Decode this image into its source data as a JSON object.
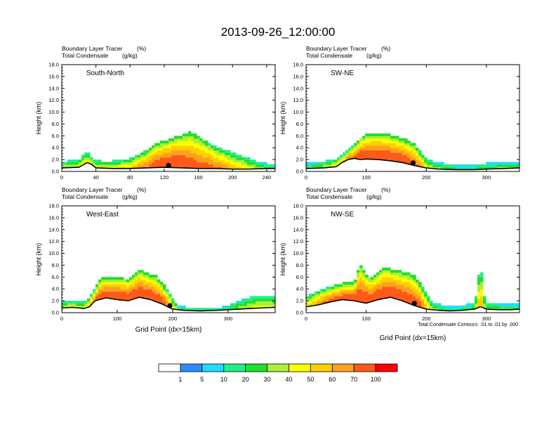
{
  "title": "2013-09-26_12:00:00",
  "footnote": "Total Condensate Contours: .01 to .01 by .000",
  "palette": [
    "#ffffff",
    "#2a8cff",
    "#20dcff",
    "#1ef08a",
    "#22e02a",
    "#a8f03a",
    "#ffff00",
    "#ffd000",
    "#ffa020",
    "#ff5a1a",
    "#ff0000"
  ],
  "colorbar": {
    "labels": [
      "1",
      "5",
      "10",
      "20",
      "30",
      "40",
      "50",
      "60",
      "70",
      "100"
    ],
    "colors": [
      "#ffffff",
      "#2a8cff",
      "#20dcff",
      "#1ef08a",
      "#22e02a",
      "#a8f03a",
      "#ffff00",
      "#ffd000",
      "#ffa020",
      "#ff5a1a",
      "#ff0000"
    ]
  },
  "chart_data": [
    {
      "type": "heatmap",
      "panel_label": "South-North",
      "left_string_1": "Boundary Layer Tracer",
      "right_string_1": "(%)",
      "left_string_2": "Total Condensate",
      "right_string_2": "(g/kg)",
      "ylabel": "Height (km)",
      "xlabel": "",
      "xlim": [
        0,
        250
      ],
      "ylim": [
        0,
        18
      ],
      "xticks": [
        "0",
        "40",
        "80",
        "120",
        "160",
        "200",
        "240"
      ],
      "yticks": [
        "0.0",
        "2.0",
        "4.0",
        "6.0",
        "8.0",
        "10.0",
        "12.0",
        "14.0",
        "16.0",
        "18.0"
      ],
      "terrain_x": [
        0,
        20,
        30,
        35,
        40,
        60,
        80,
        100,
        120,
        140,
        160,
        180,
        200,
        220,
        240,
        250
      ],
      "terrain_y": [
        0.6,
        0.7,
        1.5,
        1.2,
        0.6,
        0.5,
        0.5,
        0.6,
        0.7,
        0.6,
        0.5,
        0.5,
        0.4,
        0.4,
        0.5,
        0.5
      ],
      "plume_x": [
        0,
        20,
        30,
        35,
        45,
        60,
        80,
        100,
        110,
        120,
        130,
        140,
        150,
        160,
        170,
        180,
        190,
        200,
        210,
        220,
        230,
        240,
        250
      ],
      "plume_top": [
        1.5,
        1.8,
        3.2,
        2.0,
        1.6,
        1.6,
        2.0,
        3.5,
        4.5,
        5.0,
        5.5,
        6.0,
        6.5,
        5.8,
        4.8,
        4.0,
        3.5,
        3.0,
        2.5,
        2.0,
        1.5,
        1.2,
        1.0
      ],
      "plume_peak": [
        40,
        45,
        60,
        50,
        45,
        50,
        60,
        75,
        85,
        90,
        92,
        90,
        85,
        80,
        80,
        75,
        70,
        60,
        55,
        45,
        40,
        30,
        25
      ],
      "marker_x": 125
    },
    {
      "type": "heatmap",
      "panel_label": "SW-NE",
      "left_string_1": "Boundary Layer Tracer",
      "right_string_1": "(%)",
      "left_string_2": "Total Condensate",
      "right_string_2": "(g/kg)",
      "ylabel": "Height (km)",
      "xlabel": "",
      "xlim": [
        0,
        355
      ],
      "ylim": [
        0,
        18
      ],
      "xticks": [
        "0",
        "100",
        "200",
        "300"
      ],
      "yticks": [
        "0.0",
        "2.0",
        "4.0",
        "6.0",
        "8.0",
        "10.0",
        "12.0",
        "14.0",
        "16.0",
        "18.0"
      ],
      "terrain_x": [
        0,
        30,
        50,
        60,
        70,
        80,
        90,
        100,
        120,
        140,
        160,
        180,
        200,
        220,
        250,
        280,
        300,
        330,
        355
      ],
      "terrain_y": [
        0.5,
        0.6,
        0.8,
        1.5,
        2.0,
        2.2,
        2.0,
        2.1,
        2.0,
        1.8,
        1.5,
        1.0,
        0.6,
        0.4,
        0.3,
        0.3,
        0.4,
        0.5,
        0.6
      ],
      "plume_x": [
        0,
        30,
        50,
        60,
        70,
        80,
        90,
        100,
        120,
        140,
        160,
        180,
        190,
        200,
        220,
        250,
        280,
        300,
        330,
        355
      ],
      "plume_top": [
        1.2,
        1.5,
        2.0,
        2.6,
        3.5,
        4.3,
        5.5,
        6.0,
        6.2,
        6.0,
        5.5,
        4.5,
        3.2,
        2.0,
        1.3,
        1.0,
        1.0,
        1.2,
        1.4,
        1.3
      ],
      "plume_peak": [
        30,
        40,
        50,
        60,
        75,
        80,
        90,
        90,
        92,
        90,
        88,
        80,
        70,
        50,
        35,
        25,
        25,
        30,
        35,
        30
      ],
      "marker_x": 178
    },
    {
      "type": "heatmap",
      "panel_label": "West-East",
      "left_string_1": "Boundary Layer Tracer",
      "right_string_1": "(%)",
      "left_string_2": "Total Condensate",
      "right_string_2": "(g/kg)",
      "ylabel": "Height (km)",
      "xlabel": "Grid Point (dx=15km)",
      "xlim": [
        0,
        385
      ],
      "ylim": [
        0,
        18
      ],
      "xticks": [
        "0",
        "100",
        "200",
        "300"
      ],
      "yticks": [
        "0.0",
        "2.0",
        "4.0",
        "6.0",
        "8.0",
        "10.0",
        "12.0",
        "14.0",
        "16.0",
        "18.0"
      ],
      "terrain_x": [
        0,
        20,
        40,
        50,
        60,
        80,
        100,
        120,
        140,
        160,
        180,
        200,
        220,
        250,
        280,
        300,
        320,
        340,
        360,
        385
      ],
      "terrain_y": [
        0.8,
        0.9,
        0.7,
        1.0,
        2.0,
        2.5,
        2.2,
        2.0,
        2.6,
        2.2,
        1.5,
        0.6,
        0.4,
        0.3,
        0.4,
        0.5,
        0.6,
        0.7,
        0.8,
        0.9
      ],
      "plume_x": [
        0,
        20,
        40,
        50,
        60,
        70,
        80,
        100,
        120,
        140,
        160,
        170,
        180,
        190,
        200,
        210,
        230,
        260,
        290,
        310,
        330,
        350,
        370,
        385
      ],
      "plume_top": [
        1.6,
        1.8,
        1.6,
        2.5,
        4.0,
        5.5,
        5.8,
        5.8,
        5.5,
        7.0,
        6.3,
        6.0,
        5.0,
        3.8,
        2.2,
        1.0,
        0.7,
        0.6,
        0.8,
        1.5,
        2.2,
        2.6,
        2.8,
        2.8
      ],
      "plume_peak": [
        45,
        50,
        45,
        60,
        80,
        88,
        90,
        92,
        90,
        92,
        90,
        88,
        85,
        75,
        55,
        35,
        25,
        20,
        25,
        35,
        40,
        45,
        45,
        40
      ],
      "marker_x": 195
    },
    {
      "type": "heatmap",
      "panel_label": "NW-SE",
      "left_string_1": "Boundary Layer Tracer",
      "right_string_1": "(%)",
      "left_string_2": "Total Condensate",
      "right_string_2": "(g/kg)",
      "ylabel": "Height (km)",
      "xlabel": "Grid Point (dx=15km)",
      "xlim": [
        0,
        355
      ],
      "ylim": [
        0,
        18
      ],
      "xticks": [
        "0",
        "100",
        "200",
        "300"
      ],
      "yticks": [
        "0.0",
        "2.0",
        "4.0",
        "6.0",
        "8.0",
        "10.0",
        "12.0",
        "14.0",
        "16.0",
        "18.0"
      ],
      "terrain_x": [
        0,
        20,
        40,
        60,
        80,
        100,
        120,
        140,
        160,
        180,
        200,
        220,
        240,
        260,
        280,
        290,
        300,
        320,
        340,
        355
      ],
      "terrain_y": [
        1.0,
        1.3,
        1.8,
        2.2,
        2.0,
        1.6,
        2.2,
        2.6,
        2.0,
        1.2,
        0.6,
        0.4,
        0.3,
        0.4,
        0.6,
        1.0,
        0.6,
        0.5,
        0.5,
        0.6
      ],
      "plume_x": [
        0,
        20,
        40,
        60,
        80,
        90,
        100,
        110,
        130,
        150,
        170,
        180,
        190,
        200,
        210,
        230,
        260,
        280,
        285,
        290,
        295,
        300,
        320,
        340,
        355
      ],
      "plume_top": [
        2.5,
        3.5,
        4.2,
        4.8,
        5.0,
        8.0,
        6.2,
        5.8,
        7.5,
        7.0,
        6.5,
        6.0,
        4.8,
        3.0,
        1.6,
        1.0,
        1.0,
        1.5,
        4.0,
        8.6,
        3.0,
        1.6,
        1.4,
        1.3,
        1.3
      ],
      "plume_peak": [
        55,
        70,
        80,
        85,
        88,
        90,
        90,
        88,
        90,
        90,
        88,
        85,
        80,
        60,
        40,
        25,
        25,
        30,
        50,
        70,
        45,
        35,
        30,
        30,
        25
      ],
      "marker_x": 180
    }
  ]
}
